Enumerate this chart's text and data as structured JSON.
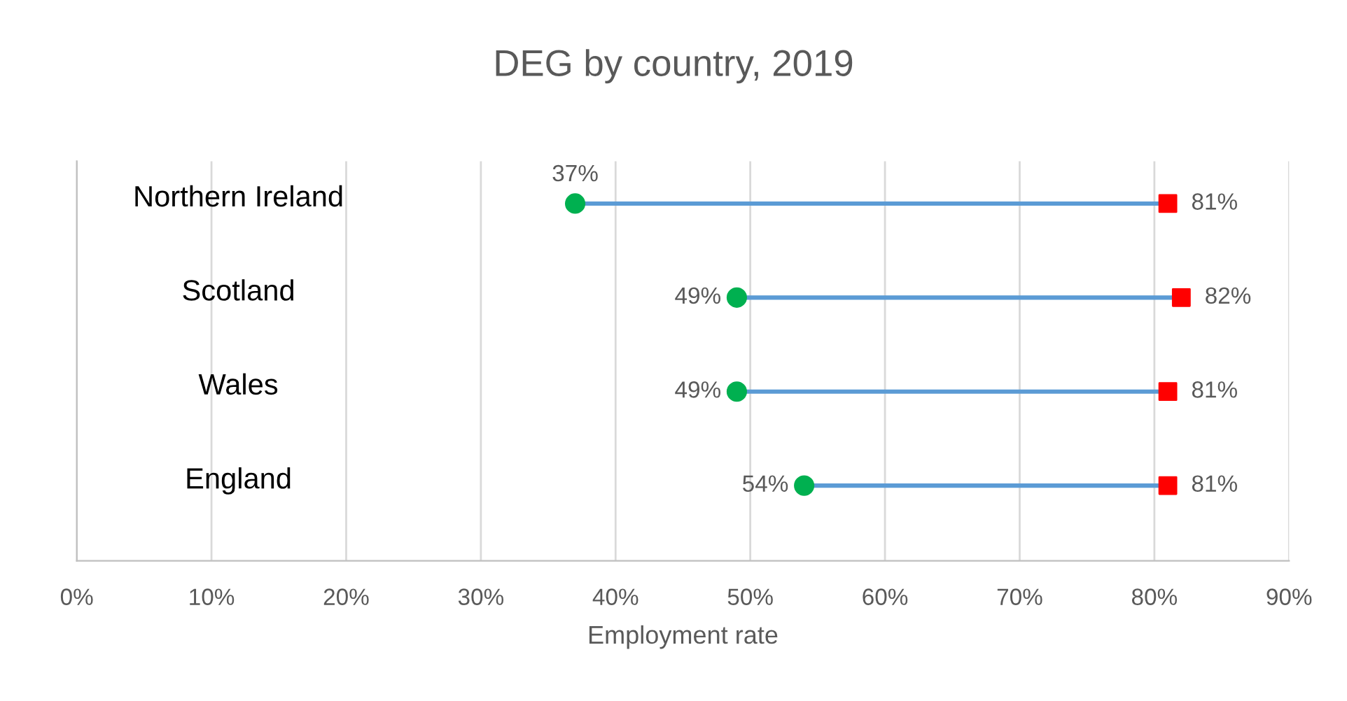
{
  "chart_data": {
    "type": "scatter",
    "title": "DEG by country, 2019",
    "xlabel": "Employment rate",
    "orientation": "horizontal",
    "categories": [
      "Northern Ireland",
      "Scotland",
      "Wales",
      "England"
    ],
    "series": [
      {
        "color": "#00b050",
        "marker": "circle",
        "values": [
          37,
          49,
          49,
          54
        ],
        "value_labels": [
          "37%",
          "49%",
          "49%",
          "54%"
        ]
      },
      {
        "color": "#ff0000",
        "marker": "square",
        "values": [
          81,
          82,
          81,
          81
        ],
        "value_labels": [
          "81%",
          "82%",
          "81%",
          "81%"
        ]
      }
    ],
    "xlim": [
      0,
      90
    ],
    "xticks": [
      {
        "value": 0,
        "label": "0%"
      },
      {
        "value": 10,
        "label": "10%"
      },
      {
        "value": 20,
        "label": "20%"
      },
      {
        "value": 30,
        "label": "30%"
      },
      {
        "value": 40,
        "label": "40%"
      },
      {
        "value": 50,
        "label": "50%"
      },
      {
        "value": 60,
        "label": "60%"
      },
      {
        "value": 70,
        "label": "70%"
      },
      {
        "value": 80,
        "label": "80%"
      },
      {
        "value": 90,
        "label": "90%"
      }
    ],
    "grid": "x",
    "legend": false
  }
}
